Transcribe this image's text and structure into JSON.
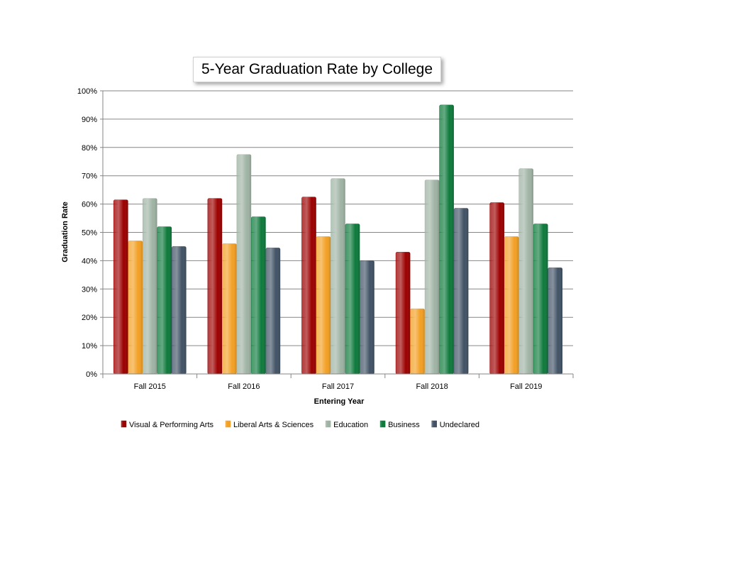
{
  "chart_data": {
    "type": "bar",
    "title": "5-Year Graduation Rate by College",
    "xlabel": "Entering Year",
    "ylabel": "Graduation Rate",
    "categories": [
      "Fall 2015",
      "Fall 2016",
      "Fall 2017",
      "Fall 2018",
      "Fall 2019"
    ],
    "ylim": [
      0,
      100
    ],
    "yticks": [
      "0%",
      "10%",
      "20%",
      "30%",
      "40%",
      "50%",
      "60%",
      "70%",
      "80%",
      "90%",
      "100%"
    ],
    "y_unit": "%",
    "grid": true,
    "legend_position": "bottom",
    "series": [
      {
        "name": "Visual & Performing Arts",
        "color": "#9c0000",
        "values": [
          61.5,
          62,
          62.5,
          43,
          60.5
        ]
      },
      {
        "name": "Liberal Arts & Sciences",
        "color": "#f3a024",
        "values": [
          47,
          46,
          48.5,
          23,
          48.5
        ]
      },
      {
        "name": "Education",
        "color": "#9fb3a4",
        "values": [
          62,
          77.5,
          69,
          68.5,
          72.5
        ]
      },
      {
        "name": "Business",
        "color": "#0e7a3c",
        "values": [
          52,
          55.5,
          53,
          95,
          53
        ]
      },
      {
        "name": "Undeclared",
        "color": "#425366",
        "values": [
          45,
          44.5,
          40,
          58.5,
          37.5
        ]
      }
    ]
  }
}
